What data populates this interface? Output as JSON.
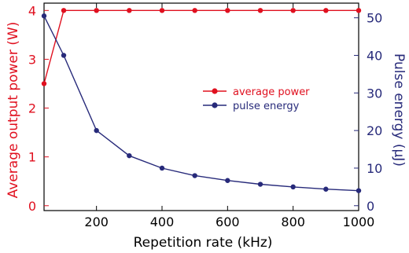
{
  "chart_data": {
    "type": "line",
    "xlabel": "Repetition rate (kHz)",
    "ylabel_left": "Average output power (W)",
    "ylabel_right": "Pulse energy (μJ)",
    "xlim": [
      40,
      1000
    ],
    "ylim_left": [
      -0.1,
      4.15
    ],
    "ylim_right": [
      -1.3,
      53.9
    ],
    "x_ticks": [
      200,
      400,
      600,
      800,
      1000
    ],
    "y_left_ticks": [
      0,
      1,
      2,
      3,
      4
    ],
    "y_right_ticks": [
      0,
      10,
      20,
      30,
      40,
      50
    ],
    "grid": false,
    "legend_position": "center-right",
    "series": [
      {
        "name": "average power",
        "axis": "left",
        "color": "#e0101f",
        "x": [
          40,
          100,
          200,
          300,
          400,
          500,
          600,
          700,
          800,
          900,
          1000
        ],
        "y": [
          2.5,
          4.0,
          4.0,
          4.0,
          4.0,
          4.0,
          4.0,
          4.0,
          4.0,
          4.0,
          4.0
        ]
      },
      {
        "name": "pulse energy",
        "axis": "right",
        "color": "#272a7a",
        "x": [
          40,
          100,
          200,
          300,
          400,
          500,
          600,
          700,
          800,
          900,
          1000
        ],
        "y": [
          50.5,
          40,
          20,
          13.3,
          10,
          8,
          6.7,
          5.7,
          5,
          4.4,
          4
        ]
      }
    ]
  }
}
